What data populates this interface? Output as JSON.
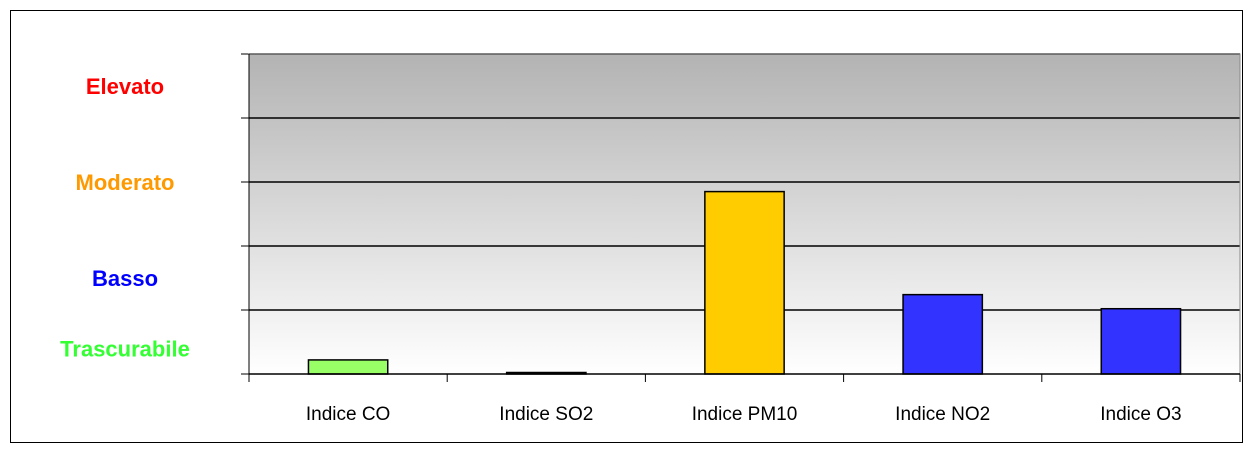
{
  "chart_data": {
    "type": "bar",
    "title": "",
    "xlabel": "",
    "ylabel": "",
    "categories": [
      "Indice CO",
      "Indice SO2",
      "Indice PM10",
      "Indice NO2",
      "Indice O3"
    ],
    "values": [
      0.22,
      0.02,
      2.85,
      1.24,
      1.02
    ],
    "bar_colors": [
      "#99ff66",
      "#000000",
      "#ffcc00",
      "#3333ff",
      "#3333ff"
    ],
    "ylim": [
      0,
      5
    ],
    "grid": true,
    "legend": "none",
    "background": "gradient-gray",
    "level_labels": [
      {
        "text": "Elevato",
        "y": 4.5,
        "color": "#ff0000"
      },
      {
        "text": "Moderato",
        "y": 3.0,
        "color": "#ff9900"
      },
      {
        "text": "Basso",
        "y": 1.5,
        "color": "#0000ff"
      },
      {
        "text": "Trascurabile",
        "y": 0.4,
        "color": "#33ff33"
      }
    ]
  }
}
